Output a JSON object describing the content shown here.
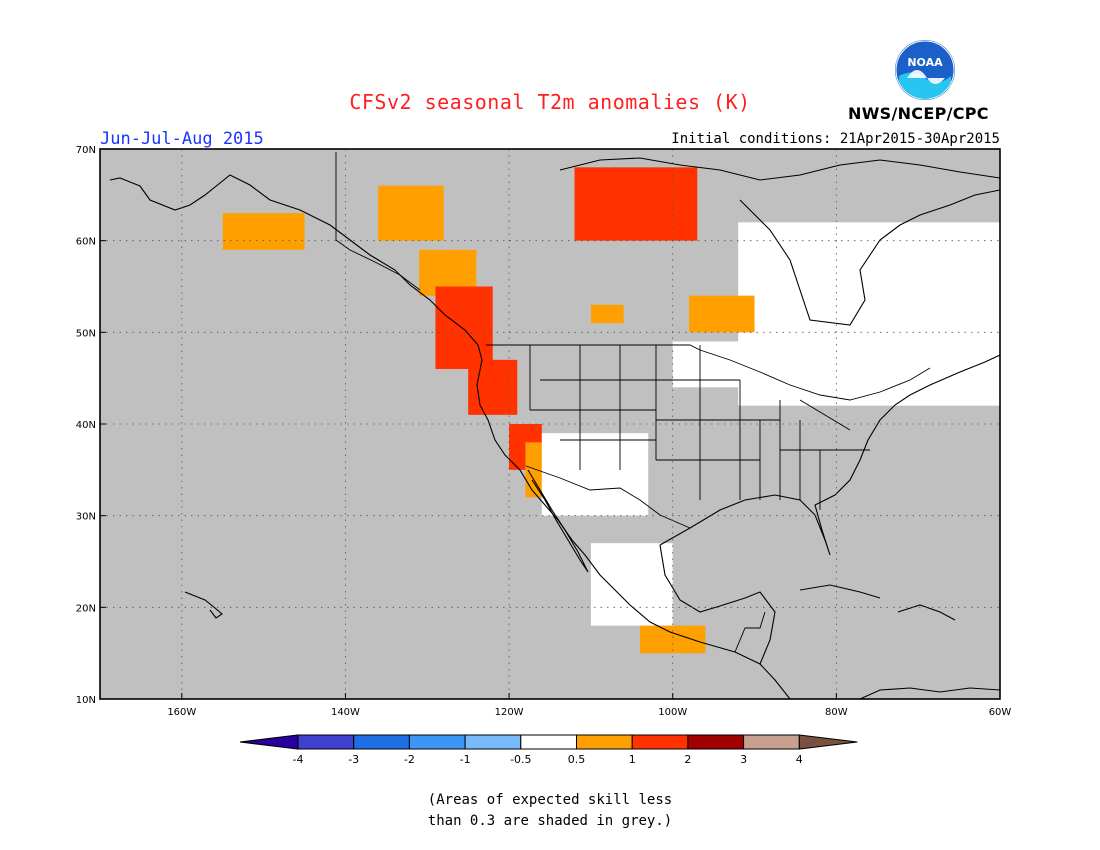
{
  "title": "CFSv2 seasonal T2m anomalies (K)",
  "season": "Jun-Jul-Aug 2015",
  "initial_conditions": "Initial conditions: 21Apr2015-30Apr2015",
  "agency": "NWS/NCEP/CPC",
  "logo": {
    "text": "NOAA",
    "icon": "noaa-logo-icon"
  },
  "note": [
    "(Areas of expected skill less",
    "than 0.3 are shaded in grey.)"
  ],
  "map": {
    "lon_range": [
      -170,
      -60
    ],
    "lat_range": [
      10,
      70
    ],
    "lat_ticks": [
      "70N",
      "60N",
      "50N",
      "40N",
      "30N",
      "20N",
      "10N"
    ],
    "lat_values": [
      70,
      60,
      50,
      40,
      30,
      20,
      10
    ],
    "lon_ticks": [
      "160W",
      "140W",
      "120W",
      "100W",
      "80W",
      "60W"
    ],
    "lon_values": [
      -160,
      -140,
      -120,
      -100,
      -80,
      -60
    ],
    "background_color": "#c0c0c0",
    "grid": "dotted"
  },
  "legend": {
    "labels": [
      "-4",
      "-3",
      "-2",
      "-1",
      "-0.5",
      "0.5",
      "1",
      "2",
      "3",
      "4"
    ],
    "colors": [
      "#2800a0",
      "#4040d0",
      "#1e6ee6",
      "#3c96f5",
      "#78b9fa",
      "#ffffff",
      "#ffa000",
      "#ff3200",
      "#a00000",
      "#c8a090",
      "#7a5040"
    ]
  },
  "anomaly_regions": [
    {
      "category": "0.5",
      "color": "#ffa000",
      "lon": [
        -155,
        -145
      ],
      "lat": [
        59,
        63
      ]
    },
    {
      "category": "0.5",
      "color": "#ffa000",
      "lon": [
        -136,
        -128
      ],
      "lat": [
        60,
        66
      ]
    },
    {
      "category": "0.5",
      "color": "#ffa000",
      "lon": [
        -131,
        -124
      ],
      "lat": [
        54,
        59
      ]
    },
    {
      "category": "1",
      "color": "#ff3200",
      "lon": [
        -112,
        -97
      ],
      "lat": [
        60,
        68
      ]
    },
    {
      "category": "1",
      "color": "#ff3200",
      "lon": [
        -129,
        -122
      ],
      "lat": [
        46,
        55
      ]
    },
    {
      "category": "1",
      "color": "#ff3200",
      "lon": [
        -125,
        -119
      ],
      "lat": [
        41,
        47
      ]
    },
    {
      "category": "1",
      "color": "#ff3200",
      "lon": [
        -120,
        -116
      ],
      "lat": [
        35,
        40
      ]
    },
    {
      "category": "0.5",
      "color": "#ffa000",
      "lon": [
        -118,
        -113
      ],
      "lat": [
        32,
        38
      ]
    },
    {
      "category": "-0.5",
      "color": "#ffffff",
      "lon": [
        -116,
        -103
      ],
      "lat": [
        30,
        39
      ]
    },
    {
      "category": "-0.5",
      "color": "#ffffff",
      "lon": [
        -110,
        -100
      ],
      "lat": [
        18,
        27
      ]
    },
    {
      "category": "-0.5",
      "color": "#ffffff",
      "lon": [
        -92,
        -60
      ],
      "lat": [
        42,
        62
      ]
    },
    {
      "category": "-0.5",
      "color": "#ffffff",
      "lon": [
        -100,
        -88
      ],
      "lat": [
        44,
        49
      ]
    },
    {
      "category": "0.5",
      "color": "#ffa000",
      "lon": [
        -104,
        -96
      ],
      "lat": [
        15,
        18
      ]
    },
    {
      "category": "0.5",
      "color": "#ffa000",
      "lon": [
        -98,
        -90
      ],
      "lat": [
        50,
        54
      ]
    },
    {
      "category": "0.5",
      "color": "#ffa000",
      "lon": [
        -110,
        -106
      ],
      "lat": [
        51,
        53
      ]
    }
  ]
}
